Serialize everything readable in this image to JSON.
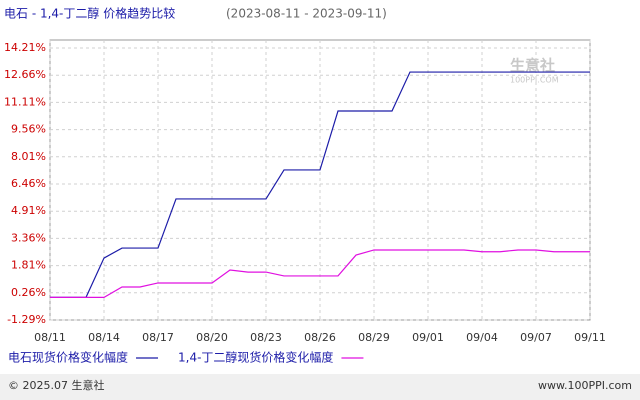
{
  "chart_data": {
    "type": "line",
    "title": "电石 - 1,4-丁二醇 价格趋势比较",
    "subtitle": "(2023-08-11 - 2023-09-11)",
    "categories": [
      "08/11",
      null,
      null,
      "08/14",
      null,
      null,
      "08/17",
      null,
      null,
      "08/20",
      null,
      null,
      "08/23",
      null,
      null,
      "08/26",
      null,
      null,
      "08/29",
      null,
      null,
      "09/01",
      null,
      null,
      "09/04",
      null,
      null,
      "09/07",
      null,
      null,
      "09/11"
    ],
    "series": [
      {
        "name": "电石现货价格变化幅度",
        "color": "#1c1ca8",
        "values": [
          0,
          0,
          0,
          2.24,
          2.81,
          2.81,
          2.81,
          5.61,
          5.61,
          5.61,
          5.61,
          5.61,
          5.61,
          7.26,
          7.26,
          7.26,
          10.62,
          10.62,
          10.62,
          10.62,
          12.84,
          12.84,
          12.84,
          12.84,
          12.84,
          12.84,
          12.84,
          12.84,
          12.84,
          12.84,
          12.84
        ]
      },
      {
        "name": "1,4-丁二醇现货价格变化幅度",
        "color": "#e010e0",
        "values": [
          0,
          0,
          0,
          0,
          0.59,
          0.59,
          0.82,
          0.82,
          0.82,
          0.82,
          1.56,
          1.44,
          1.44,
          1.22,
          1.22,
          1.22,
          1.22,
          2.41,
          2.7,
          2.7,
          2.7,
          2.7,
          2.7,
          2.7,
          2.6,
          2.6,
          2.7,
          2.7,
          2.6,
          2.6,
          2.6
        ]
      }
    ],
    "ylim": [
      -1.29,
      14.21
    ],
    "yticks": [
      {
        "value": -1.29,
        "label": "-1.29%"
      },
      {
        "value": 0.26,
        "label": "0.26%"
      },
      {
        "value": 1.81,
        "label": "1.81%"
      },
      {
        "value": 3.36,
        "label": "3.36%"
      },
      {
        "value": 4.91,
        "label": "4.91%"
      },
      {
        "value": 6.46,
        "label": "6.46%"
      },
      {
        "value": 8.01,
        "label": "8.01%"
      },
      {
        "value": 9.56,
        "label": "9.56%"
      },
      {
        "value": 11.11,
        "label": "11.11%"
      },
      {
        "value": 12.66,
        "label": "12.66%"
      },
      {
        "value": 14.21,
        "label": "14.21%"
      }
    ],
    "grid": true,
    "watermark": [
      "生意社",
      "100PPI.COM"
    ],
    "footer": {
      "left": "© 2025.07 生意社",
      "right": "www.100PPI.com"
    }
  }
}
